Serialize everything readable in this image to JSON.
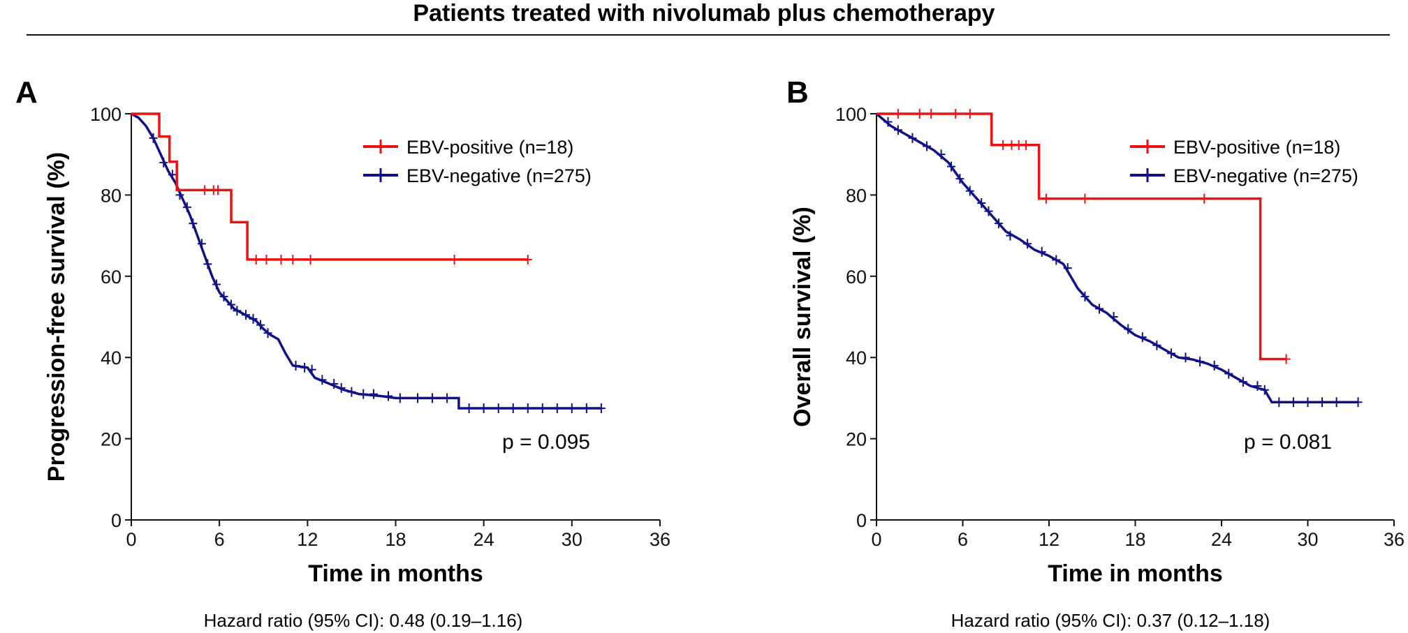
{
  "figure": {
    "title": "Patients treated with nivolumab plus chemotherapy"
  },
  "colors": {
    "red": "#ee1111",
    "blue": "#10108a"
  },
  "chart_data": [
    {
      "type": "line",
      "panel": "A",
      "xlabel": "Time in months",
      "ylabel": "Progression-free survival (%)",
      "xlim": [
        0,
        36
      ],
      "ylim": [
        0,
        100
      ],
      "xticks": [
        0,
        6,
        12,
        18,
        24,
        30,
        36
      ],
      "yticks": [
        0,
        20,
        40,
        60,
        80,
        100
      ],
      "legend_position": "top-right",
      "p_value_text": "p = 0.095",
      "hazard_ratio_text": "Hazard ratio (95% CI): 0.48 (0.19–1.16)",
      "series": [
        {
          "name": "EBV-positive (n=18)",
          "color": "#ee1111",
          "points": [
            [
              0,
              100
            ],
            [
              1.9,
              100
            ],
            [
              1.9,
              94.4
            ],
            [
              2.6,
              94.4
            ],
            [
              2.6,
              88.2
            ],
            [
              3.1,
              88.2
            ],
            [
              3.1,
              81.2
            ],
            [
              6.8,
              81.2
            ],
            [
              6.8,
              73.3
            ],
            [
              7.9,
              73.3
            ],
            [
              7.9,
              64.1
            ],
            [
              27,
              64.1
            ]
          ],
          "censor": [
            [
              5,
              81.2
            ],
            [
              5.6,
              81.2
            ],
            [
              5.9,
              81.2
            ],
            [
              8.5,
              64.1
            ],
            [
              9.2,
              64.1
            ],
            [
              10.2,
              64.1
            ],
            [
              11,
              64.1
            ],
            [
              12.2,
              64.1
            ],
            [
              22,
              64.1
            ],
            [
              27,
              64.1
            ]
          ]
        },
        {
          "name": "EBV-negative (n=275)",
          "color": "#10108a",
          "points": [
            [
              0,
              100
            ],
            [
              0.5,
              99
            ],
            [
              1,
              97
            ],
            [
              1.5,
              94
            ],
            [
              2,
              90
            ],
            [
              2.5,
              86
            ],
            [
              3,
              83
            ],
            [
              3.5,
              79
            ],
            [
              4,
              75
            ],
            [
              4.5,
              70
            ],
            [
              5,
              65
            ],
            [
              5.5,
              60
            ],
            [
              6,
              56
            ],
            [
              6.5,
              54
            ],
            [
              7,
              52
            ],
            [
              7.5,
              51
            ],
            [
              8,
              50
            ],
            [
              8.5,
              49
            ],
            [
              9,
              47
            ],
            [
              9.5,
              45.5
            ],
            [
              10,
              44.5
            ],
            [
              10.5,
              41
            ],
            [
              11,
              38
            ],
            [
              12,
              37.5
            ],
            [
              12.5,
              35
            ],
            [
              13.5,
              33.5
            ],
            [
              14.5,
              32
            ],
            [
              15.5,
              31
            ],
            [
              17,
              30.5
            ],
            [
              18,
              30
            ],
            [
              19,
              30
            ],
            [
              22.3,
              30
            ],
            [
              22.3,
              27.5
            ],
            [
              32,
              27.5
            ]
          ],
          "censor": [
            [
              1.5,
              94
            ],
            [
              2.2,
              88
            ],
            [
              2.8,
              85
            ],
            [
              3.3,
              80
            ],
            [
              3.8,
              77
            ],
            [
              4.2,
              73
            ],
            [
              4.8,
              68
            ],
            [
              5.2,
              63
            ],
            [
              5.8,
              58
            ],
            [
              6.3,
              55
            ],
            [
              6.8,
              53
            ],
            [
              7.2,
              51.5
            ],
            [
              7.8,
              50.5
            ],
            [
              8.3,
              49.5
            ],
            [
              8.8,
              48
            ],
            [
              9.3,
              46
            ],
            [
              11.2,
              38
            ],
            [
              11.8,
              37.5
            ],
            [
              12.3,
              37
            ],
            [
              13,
              34.5
            ],
            [
              13.8,
              33.5
            ],
            [
              14.3,
              32.5
            ],
            [
              15,
              31.5
            ],
            [
              15.8,
              31
            ],
            [
              16.5,
              31
            ],
            [
              17.5,
              30.5
            ],
            [
              18.3,
              30
            ],
            [
              19.5,
              30
            ],
            [
              20.5,
              30
            ],
            [
              21.5,
              30
            ],
            [
              23,
              27.5
            ],
            [
              24,
              27.5
            ],
            [
              25,
              27.5
            ],
            [
              26,
              27.5
            ],
            [
              27,
              27.5
            ],
            [
              28,
              27.5
            ],
            [
              29,
              27.5
            ],
            [
              30,
              27.5
            ],
            [
              31,
              27.5
            ],
            [
              32,
              27.5
            ]
          ]
        }
      ]
    },
    {
      "type": "line",
      "panel": "B",
      "xlabel": "Time in months",
      "ylabel": "Overall survival (%)",
      "xlim": [
        0,
        36
      ],
      "ylim": [
        0,
        100
      ],
      "xticks": [
        0,
        6,
        12,
        18,
        24,
        30,
        36
      ],
      "yticks": [
        0,
        20,
        40,
        60,
        80,
        100
      ],
      "legend_position": "top-right",
      "p_value_text": "p = 0.081",
      "hazard_ratio_text": "Hazard ratio (95% CI): 0.37 (0.12–1.18)",
      "series": [
        {
          "name": "EBV-positive (n=18)",
          "color": "#ee1111",
          "points": [
            [
              0,
              100
            ],
            [
              8,
              100
            ],
            [
              8,
              92.3
            ],
            [
              11.3,
              92.3
            ],
            [
              11.3,
              79.1
            ],
            [
              26.7,
              79.1
            ],
            [
              26.7,
              39.6
            ],
            [
              28.5,
              39.6
            ]
          ],
          "censor": [
            [
              1.5,
              100
            ],
            [
              3,
              100
            ],
            [
              3.8,
              100
            ],
            [
              5.5,
              100
            ],
            [
              6.5,
              100
            ],
            [
              8.8,
              92.3
            ],
            [
              9.4,
              92.3
            ],
            [
              9.9,
              92.3
            ],
            [
              10.4,
              92.3
            ],
            [
              11.8,
              79.1
            ],
            [
              14.5,
              79.1
            ],
            [
              22.8,
              79.1
            ],
            [
              28.5,
              39.6
            ]
          ]
        },
        {
          "name": "EBV-negative (n=275)",
          "color": "#10108a",
          "points": [
            [
              0,
              100
            ],
            [
              1,
              97
            ],
            [
              2,
              95
            ],
            [
              3,
              93
            ],
            [
              4,
              91
            ],
            [
              5,
              88
            ],
            [
              6,
              83
            ],
            [
              7,
              79
            ],
            [
              8,
              75
            ],
            [
              9,
              71
            ],
            [
              10,
              69
            ],
            [
              11,
              66.5
            ],
            [
              12,
              65
            ],
            [
              13,
              63
            ],
            [
              14,
              57
            ],
            [
              15,
              53
            ],
            [
              16,
              51
            ],
            [
              17,
              48
            ],
            [
              18,
              45.5
            ],
            [
              19,
              44
            ],
            [
              20,
              42
            ],
            [
              21,
              40
            ],
            [
              22,
              39.5
            ],
            [
              23,
              38.5
            ],
            [
              24,
              37
            ],
            [
              25,
              35
            ],
            [
              26,
              33
            ],
            [
              27,
              32
            ],
            [
              27.5,
              29
            ],
            [
              33.5,
              29
            ]
          ],
          "censor": [
            [
              0.8,
              98
            ],
            [
              1.5,
              96
            ],
            [
              2.5,
              94
            ],
            [
              3.5,
              92
            ],
            [
              4.5,
              90
            ],
            [
              5.2,
              87
            ],
            [
              5.8,
              84
            ],
            [
              6.5,
              81
            ],
            [
              7.3,
              78
            ],
            [
              7.8,
              76
            ],
            [
              8.5,
              73
            ],
            [
              9.3,
              70
            ],
            [
              10.5,
              68
            ],
            [
              11.5,
              66
            ],
            [
              12.5,
              64
            ],
            [
              13.3,
              62
            ],
            [
              14.5,
              55
            ],
            [
              15.5,
              52
            ],
            [
              16.5,
              50
            ],
            [
              17.5,
              47
            ],
            [
              18.5,
              45
            ],
            [
              19.5,
              43
            ],
            [
              20.5,
              41
            ],
            [
              21.5,
              40
            ],
            [
              22.5,
              39
            ],
            [
              23.5,
              38
            ],
            [
              24.5,
              36
            ],
            [
              25.5,
              34
            ],
            [
              26.5,
              33
            ],
            [
              27,
              32
            ],
            [
              28,
              29
            ],
            [
              29,
              29
            ],
            [
              30,
              29
            ],
            [
              31,
              29
            ],
            [
              32,
              29
            ],
            [
              33.5,
              29
            ]
          ]
        }
      ]
    }
  ]
}
